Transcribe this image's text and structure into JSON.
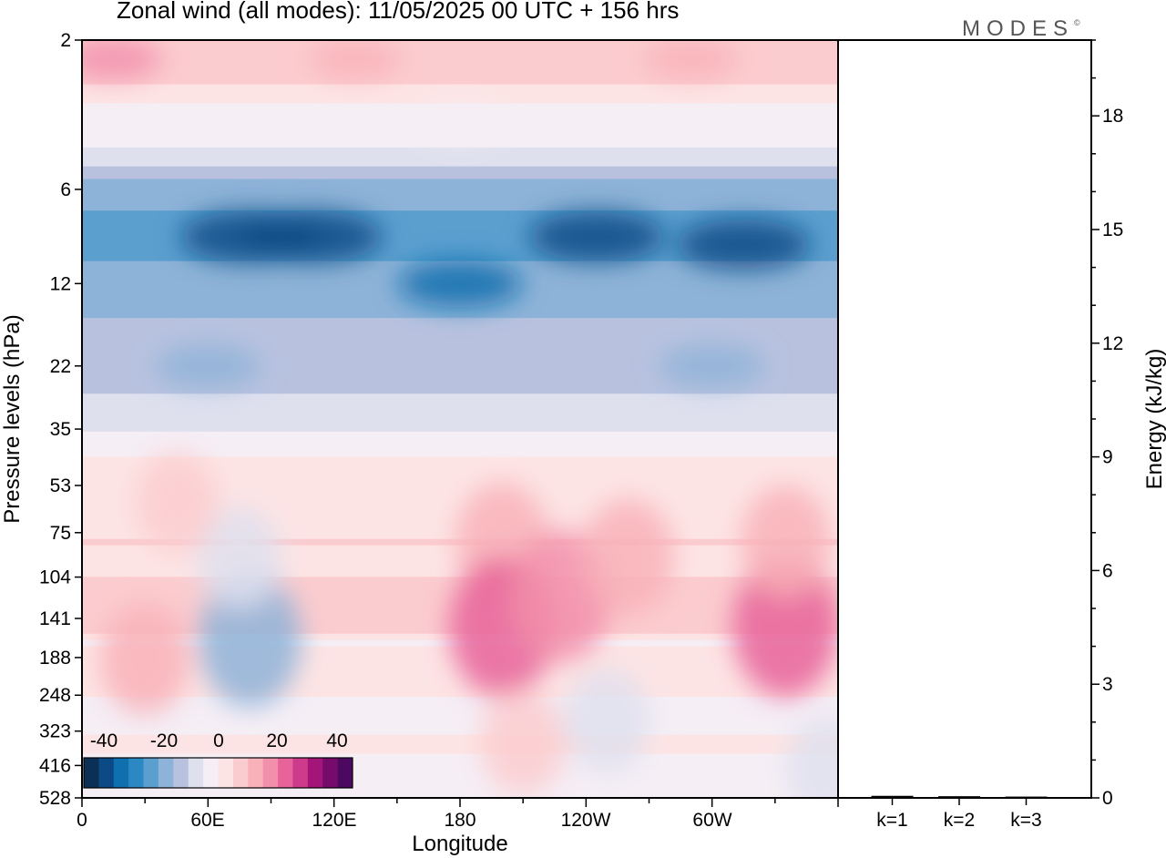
{
  "title": "Zonal wind (all modes):  11/05/2025  00 UTC  + 156 hrs",
  "brand": "MODES",
  "brand_mark": "©",
  "colors": {
    "scale": [
      "#0b2f55",
      "#0c4a85",
      "#106fae",
      "#2c88c2",
      "#5b9fcf",
      "#8eb3d8",
      "#b8c2df",
      "#dfe0ee",
      "#f5eef5",
      "#fde4e4",
      "#fbcccf",
      "#f8b1b9",
      "#f28fab",
      "#e8639a",
      "#cf3b8c",
      "#a4157a",
      "#760b6c",
      "#4d0861"
    ]
  },
  "chart_data": [
    {
      "type": "heatmap",
      "xlabel": "Longitude",
      "ylabel": "Pressure levels (hPa)",
      "x_ticks": [
        "0",
        "60E",
        "120E",
        "180",
        "120W",
        "60W"
      ],
      "y_ticks": [
        "2",
        "6",
        "12",
        "22",
        "35",
        "53",
        "75",
        "104",
        "141",
        "188",
        "248",
        "323",
        "416",
        "528"
      ],
      "y_scale": "log",
      "legend": {
        "position": "bottom-left",
        "ticks": [
          "-40",
          "-20",
          "0",
          "20",
          "40"
        ],
        "min": -45,
        "max": 45,
        "step": 5
      },
      "features": [
        {
          "lon": 15,
          "p": 2.3,
          "value": 15
        },
        {
          "lon": 130,
          "p": 2.3,
          "value": 12
        },
        {
          "lon": 290,
          "p": 2.3,
          "value": 14
        },
        {
          "lon": 180,
          "p": 3.7,
          "value": -5
        },
        {
          "lon": 80,
          "p": 8.5,
          "value": -40
        },
        {
          "lon": 110,
          "p": 8.5,
          "value": -40
        },
        {
          "lon": 245,
          "p": 8.5,
          "value": -38
        },
        {
          "lon": 315,
          "p": 9,
          "value": -37
        },
        {
          "lon": 180,
          "p": 12,
          "value": -32
        },
        {
          "lon": 60,
          "p": 22,
          "value": -20
        },
        {
          "lon": 300,
          "p": 22,
          "value": -20
        },
        {
          "lon": 80,
          "p": 165,
          "value": -18
        },
        {
          "lon": 75,
          "p": 90,
          "value": -7
        },
        {
          "lon": 30,
          "p": 190,
          "value": 10
        },
        {
          "lon": 45,
          "p": 60,
          "value": 6
        },
        {
          "lon": 200,
          "p": 80,
          "value": 12
        },
        {
          "lon": 200,
          "p": 150,
          "value": 20
        },
        {
          "lon": 228,
          "p": 120,
          "value": 17
        },
        {
          "lon": 260,
          "p": 90,
          "value": 12
        },
        {
          "lon": 335,
          "p": 150,
          "value": 20
        },
        {
          "lon": 335,
          "p": 80,
          "value": 10
        },
        {
          "lon": 250,
          "p": 300,
          "value": -8
        },
        {
          "lon": 210,
          "p": 350,
          "value": 8
        },
        {
          "lon": 355,
          "p": 420,
          "value": -6
        }
      ]
    },
    {
      "type": "bar",
      "categories": [
        "k=1",
        "k=2",
        "k=3"
      ],
      "values": [
        0.03,
        0.02,
        0.01
      ],
      "ylabel": "Energy (kJ/kg)",
      "ylim": [
        0,
        20
      ],
      "y_ticks": [
        "0",
        "3",
        "6",
        "9",
        "12",
        "15",
        "18"
      ]
    }
  ]
}
